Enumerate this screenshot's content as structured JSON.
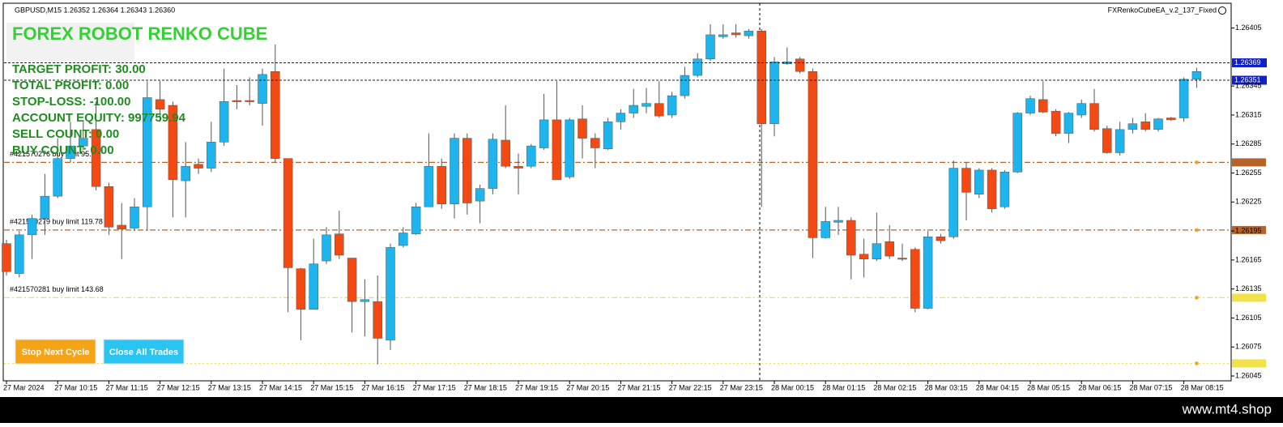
{
  "header": {
    "symbol": "GBPUSD,M15  1.26352 1.26364 1.26343 1.26360",
    "expert": "FXRenkoCubeEA_v.2_137_Fixed"
  },
  "panel": {
    "title": "FOREX ROBOT RENKO CUBE",
    "lines": [
      "TARGET PROFIT: 30.00",
      "TOTAL PROFIT: 0.00",
      "STOP-LOSS: -100.00",
      "ACCOUNT EQUITY: 997759.94",
      "SELL COUNT: 0.00",
      "BUY COUNT: 0.00"
    ]
  },
  "buttons": [
    {
      "label": "Stop Next Cycle",
      "color": "#f5a418"
    },
    {
      "label": "Close All Trades",
      "color": "#2ac4f2"
    }
  ],
  "orders": [
    {
      "label": "#421570276 buy limit 95.78",
      "price": 1.26266,
      "color": "#b5652a"
    },
    {
      "label": "#421570279 buy limit 119.78",
      "price": 1.26196,
      "color": "#b5652a"
    },
    {
      "label": "#421570281 buy limit 143.68",
      "price": 1.26126,
      "color": "#f2e24a"
    },
    {
      "price": 1.26058,
      "color": "#f2e24a"
    }
  ],
  "price_labels": [
    {
      "label": "1.26369",
      "price": 1.26369,
      "color": "#1020c8"
    },
    {
      "label": "1.26351",
      "price": 1.26351,
      "color": "#1020c8"
    }
  ],
  "footer": "www.mt4.shop",
  "chart_data": {
    "type": "candlestick",
    "up_color": "#1eb4ee",
    "down_color": "#f24a12",
    "categories": [
      "27 Mar 2024",
      null,
      null,
      null,
      "27 Mar 10:15",
      null,
      null,
      null,
      "27 Mar 11:15",
      null,
      null,
      null,
      "27 Mar 12:15",
      null,
      null,
      null,
      "27 Mar 13:15",
      null,
      null,
      null,
      "27 Mar 14:15",
      null,
      null,
      null,
      "27 Mar 15:15",
      null,
      null,
      null,
      "27 Mar 16:15",
      null,
      null,
      null,
      "27 Mar 17:15",
      null,
      null,
      null,
      "27 Mar 18:15",
      null,
      null,
      null,
      "27 Mar 19:15",
      null,
      null,
      null,
      "27 Mar 20:15",
      null,
      null,
      null,
      "27 Mar 21:15",
      null,
      null,
      null,
      "27 Mar 22:15",
      null,
      null,
      null,
      "27 Mar 23:15",
      null,
      null,
      null,
      "28 Mar 00:15",
      null,
      null,
      null,
      "28 Mar 01:15",
      null,
      null,
      null,
      "28 Mar 02:15",
      null,
      null,
      null,
      "28 Mar 03:15",
      null,
      null,
      null,
      "28 Mar 04:15",
      null,
      null,
      null,
      "28 Mar 05:15",
      null,
      null,
      null,
      "28 Mar 06:15",
      null,
      null,
      null,
      "28 Mar 07:15",
      null,
      null,
      null,
      "28 Mar 08:15",
      null
    ],
    "open": [
      1.26182,
      1.26151,
      1.26191,
      1.26208,
      1.26231,
      1.2627,
      1.26283,
      1.263,
      1.26241,
      1.26201,
      1.26198,
      1.2622,
      1.26331,
      1.26325,
      1.26247,
      1.26264,
      1.2626,
      1.26287,
      1.2633,
      1.2633,
      1.26327,
      1.2636,
      1.2627,
      1.26156,
      1.26114,
      1.26164,
      1.26192,
      1.26167,
      1.26122,
      1.26122,
      1.26082,
      1.2618,
      1.26192,
      1.2622,
      1.26262,
      1.26223,
      1.26291,
      1.26226,
      1.26239,
      1.26289,
      1.26262,
      1.26262,
      1.26281,
      1.2631,
      1.26251,
      1.26311,
      1.26291,
      1.2628,
      1.26308,
      1.26317,
      1.26324,
      1.26327,
      1.26315,
      1.26335,
      1.26356,
      1.26373,
      1.26396,
      1.264,
      1.26397,
      1.26402,
      1.26306,
      1.26368,
      1.26373,
      1.2636,
      1.26188,
      1.26204,
      1.26206,
      1.26171,
      1.26166,
      1.26184,
      1.26167,
      1.26176,
      1.26115,
      1.26189,
      1.26189,
      1.2626,
      1.26233,
      1.26258,
      1.2622,
      1.26256,
      1.26317,
      1.26331,
      1.26319,
      1.26296,
      1.26315,
      1.26327,
      1.26301,
      1.26276,
      1.263,
      1.26308,
      1.263,
      1.26312,
      1.26312,
      1.26352
    ],
    "high": [
      1.26186,
      1.26195,
      1.26212,
      1.26254,
      1.26291,
      1.26308,
      1.26308,
      1.26329,
      1.26245,
      1.26224,
      1.26229,
      1.2635,
      1.2635,
      1.26329,
      1.26287,
      1.2627,
      1.26308,
      1.26363,
      1.26346,
      1.26354,
      1.26363,
      1.26388,
      1.2627,
      1.26157,
      1.26187,
      1.26199,
      1.26216,
      1.26167,
      1.26145,
      1.26149,
      1.26182,
      1.26199,
      1.26224,
      1.26296,
      1.2627,
      1.26296,
      1.26296,
      1.26243,
      1.26296,
      1.26325,
      1.26275,
      1.26285,
      1.26337,
      1.2635,
      1.26312,
      1.26325,
      1.26296,
      1.26312,
      1.26321,
      1.26342,
      1.26343,
      1.2635,
      1.26339,
      1.26365,
      1.26379,
      1.26409,
      1.26409,
      1.26409,
      1.26404,
      1.26404,
      1.26375,
      1.26385,
      1.26375,
      1.26363,
      1.2622,
      1.2622,
      1.26209,
      1.26187,
      1.26214,
      1.26201,
      1.26182,
      1.26178,
      1.26195,
      1.26192,
      1.26268,
      1.26266,
      1.2626,
      1.2626,
      1.26258,
      1.26318,
      1.26335,
      1.2635,
      1.26321,
      1.26318,
      1.26331,
      1.26342,
      1.26304,
      1.26308,
      1.26312,
      1.26317,
      1.26312,
      1.26313,
      1.26354,
      1.26364
    ],
    "low": [
      1.26149,
      1.26147,
      1.26166,
      1.26191,
      1.26229,
      1.26266,
      1.26279,
      1.26237,
      1.26191,
      1.26166,
      1.26195,
      1.26195,
      1.26308,
      1.26209,
      1.26209,
      1.26254,
      1.26256,
      1.26283,
      1.26321,
      1.26325,
      1.26304,
      1.26266,
      1.26111,
      1.26082,
      1.26114,
      1.26161,
      1.26166,
      1.2609,
      1.26086,
      1.26057,
      1.26072,
      1.26178,
      1.26191,
      1.2622,
      1.26218,
      1.26208,
      1.26212,
      1.26203,
      1.26233,
      1.2626,
      1.26233,
      1.2626,
      1.26279,
      1.26248,
      1.26249,
      1.2627,
      1.2626,
      1.26279,
      1.263,
      1.26312,
      1.26317,
      1.26312,
      1.26312,
      1.26332,
      1.26354,
      1.26371,
      1.26394,
      1.26395,
      1.26394,
      1.2622,
      1.26293,
      1.26367,
      1.26358,
      1.26167,
      1.26187,
      1.26191,
      1.26145,
      1.26147,
      1.26164,
      1.26166,
      1.26164,
      1.26111,
      1.26114,
      1.26182,
      1.26187,
      1.26206,
      1.26229,
      1.26214,
      1.26218,
      1.26255,
      1.26315,
      1.26317,
      1.26293,
      1.26286,
      1.26312,
      1.26298,
      1.26275,
      1.26273,
      1.26296,
      1.26298,
      1.26298,
      1.26309,
      1.26308,
      1.26343
    ],
    "close": [
      1.26153,
      1.26191,
      1.26208,
      1.26231,
      1.2627,
      1.26283,
      1.26291,
      1.26241,
      1.26199,
      1.26197,
      1.2622,
      1.26333,
      1.26321,
      1.26248,
      1.26262,
      1.2626,
      1.26287,
      1.26329,
      1.26329,
      1.26329,
      1.26357,
      1.2627,
      1.26157,
      1.26114,
      1.26161,
      1.26191,
      1.2617,
      1.26122,
      1.26124,
      1.26084,
      1.26178,
      1.26193,
      1.2622,
      1.26262,
      1.26223,
      1.26291,
      1.26224,
      1.26239,
      1.2629,
      1.26262,
      1.2626,
      1.26283,
      1.2631,
      1.26248,
      1.2631,
      1.26291,
      1.26281,
      1.26308,
      1.26317,
      1.26325,
      1.26327,
      1.26314,
      1.26335,
      1.26356,
      1.26373,
      1.26398,
      1.26398,
      1.26398,
      1.26402,
      1.26306,
      1.2637,
      1.2637,
      1.2636,
      1.26188,
      1.26205,
      1.26206,
      1.2617,
      1.26166,
      1.26182,
      1.26169,
      1.26166,
      1.26115,
      1.26189,
      1.26185,
      1.2626,
      1.26235,
      1.26258,
      1.26218,
      1.26256,
      1.26317,
      1.26332,
      1.26318,
      1.26296,
      1.26317,
      1.26327,
      1.263,
      1.26276,
      1.263,
      1.26306,
      1.263,
      1.26311,
      1.2631,
      1.26352,
      1.2636
    ],
    "ylim": [
      1.2604,
      1.26434
    ],
    "yticks": [
      1.26405,
      1.26345,
      1.26315,
      1.26285,
      1.26255,
      1.26225,
      1.26195,
      1.26165,
      1.26135,
      1.26105,
      1.26075,
      1.26045
    ]
  }
}
